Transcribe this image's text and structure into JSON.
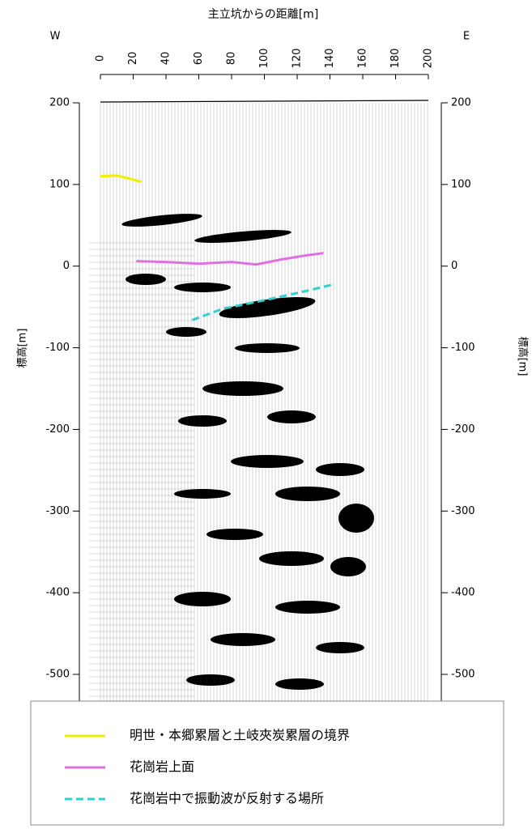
{
  "chart_data": {
    "type": "line",
    "title": "主立坑からの距離[m]",
    "west_label": "W",
    "east_label": "E",
    "ylabel": "標高[m]",
    "y2label": "標高[m]",
    "xlim": [
      0,
      200
    ],
    "xticks": [
      0,
      20,
      40,
      60,
      80,
      100,
      120,
      140,
      160,
      180,
      200
    ],
    "ylim": [
      200,
      -500
    ],
    "yticks": [
      200,
      100,
      0,
      -100,
      -200,
      -300,
      -400,
      -500
    ],
    "y2lim": [
      200,
      -500
    ],
    "y2ticks": [
      200,
      100,
      0,
      -100,
      -200,
      -300,
      -400,
      -500
    ],
    "series": [
      {
        "name": "明世・本郷累層と土岐夾炭累層の境界",
        "color": "#f2ee00",
        "dash": false,
        "x": [
          0,
          10,
          20,
          25
        ],
        "y": [
          110,
          111,
          106,
          103
        ]
      },
      {
        "name": "花崗岩上面",
        "color": "#e070e0",
        "dash": false,
        "x": [
          22,
          40,
          60,
          80,
          95,
          110,
          125,
          136
        ],
        "y": [
          6,
          5,
          3,
          5,
          2,
          8,
          13,
          16
        ]
      },
      {
        "name": "花崗岩中で振動波が反射する場所",
        "color": "#30d0d0",
        "dash": true,
        "x": [
          56,
          75,
          97,
          120,
          141
        ],
        "y": [
          -66,
          -52,
          -43,
          -33,
          -23
        ]
      }
    ]
  }
}
